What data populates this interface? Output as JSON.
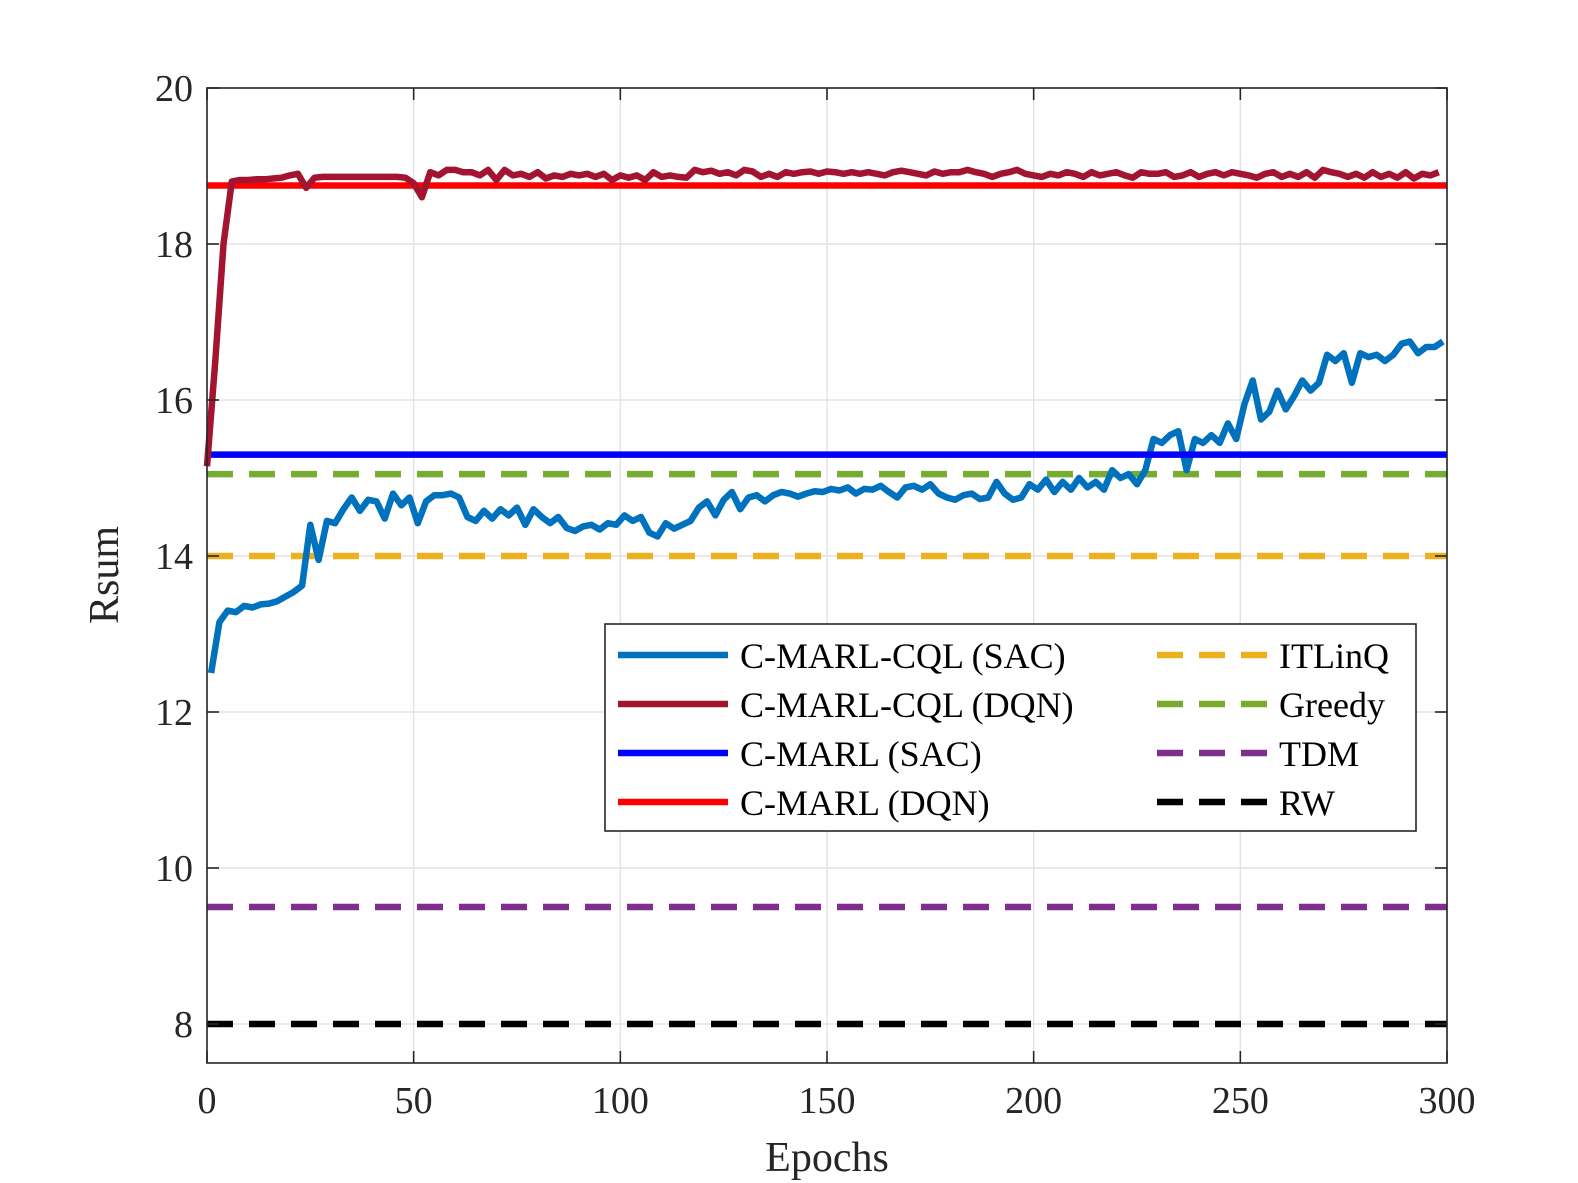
{
  "chart_data": {
    "type": "line",
    "xlabel": "Epochs",
    "ylabel": "Rsum",
    "xlim": [
      0,
      300
    ],
    "ylim": [
      7.5,
      20
    ],
    "xticks": [
      0,
      50,
      100,
      150,
      200,
      250,
      300
    ],
    "yticks": [
      8,
      10,
      12,
      14,
      16,
      18,
      20
    ],
    "xtick_labels": [
      "0",
      "50",
      "100",
      "150",
      "200",
      "250",
      "300"
    ],
    "ytick_labels": [
      "8",
      "10",
      "12",
      "14",
      "16",
      "18",
      "20"
    ],
    "grid": true,
    "legend_position": "center-right",
    "series": [
      {
        "name": "C-MARL-CQL (SAC)",
        "color": "#0072BD",
        "style": "solid",
        "x": [
          1,
          3,
          5,
          7,
          9,
          11,
          13,
          15,
          17,
          19,
          21,
          23,
          25,
          27,
          29,
          31,
          33,
          35,
          37,
          39,
          41,
          43,
          45,
          47,
          49,
          51,
          53,
          55,
          57,
          59,
          61,
          63,
          65,
          67,
          69,
          71,
          73,
          75,
          77,
          79,
          81,
          83,
          85,
          87,
          89,
          91,
          93,
          95,
          97,
          99,
          101,
          103,
          105,
          107,
          109,
          111,
          113,
          115,
          117,
          119,
          121,
          123,
          125,
          127,
          129,
          131,
          133,
          135,
          137,
          139,
          141,
          143,
          145,
          147,
          149,
          151,
          153,
          155,
          157,
          159,
          161,
          163,
          165,
          167,
          169,
          171,
          173,
          175,
          177,
          179,
          181,
          183,
          185,
          187,
          189,
          191,
          193,
          195,
          197,
          199,
          201,
          203,
          205,
          207,
          209,
          211,
          213,
          215,
          217,
          219,
          221,
          223,
          225,
          227,
          229,
          231,
          233,
          235,
          237,
          239,
          241,
          243,
          245,
          247,
          249,
          251,
          253,
          255,
          257,
          259,
          261,
          263,
          265,
          267,
          269,
          271,
          273,
          275,
          277,
          279,
          281,
          283,
          285,
          287,
          289,
          291,
          293,
          295,
          297,
          299
        ],
        "values": [
          12.5,
          13.15,
          13.3,
          13.28,
          13.36,
          13.34,
          13.38,
          13.39,
          13.42,
          13.48,
          13.54,
          13.62,
          14.4,
          13.95,
          14.45,
          14.42,
          14.6,
          14.75,
          14.58,
          14.72,
          14.7,
          14.48,
          14.8,
          14.65,
          14.75,
          14.42,
          14.7,
          14.78,
          14.78,
          14.8,
          14.75,
          14.5,
          14.45,
          14.58,
          14.48,
          14.6,
          14.52,
          14.62,
          14.4,
          14.6,
          14.5,
          14.42,
          14.5,
          14.36,
          14.32,
          14.38,
          14.4,
          14.34,
          14.42,
          14.4,
          14.52,
          14.45,
          14.5,
          14.3,
          14.25,
          14.42,
          14.35,
          14.4,
          14.45,
          14.62,
          14.7,
          14.52,
          14.72,
          14.82,
          14.6,
          14.75,
          14.78,
          14.7,
          14.78,
          14.82,
          14.8,
          14.76,
          14.8,
          14.83,
          14.82,
          14.86,
          14.84,
          14.88,
          14.8,
          14.86,
          14.85,
          14.9,
          14.82,
          14.75,
          14.88,
          14.9,
          14.85,
          14.92,
          14.8,
          14.75,
          14.72,
          14.78,
          14.8,
          14.73,
          14.75,
          14.95,
          14.8,
          14.72,
          14.75,
          14.92,
          14.85,
          14.98,
          14.82,
          14.95,
          14.85,
          15.0,
          14.88,
          14.95,
          14.85,
          15.1,
          15.0,
          15.05,
          14.92,
          15.1,
          15.5,
          15.45,
          15.55,
          15.6,
          15.1,
          15.5,
          15.45,
          15.55,
          15.45,
          15.7,
          15.5,
          15.95,
          16.25,
          15.75,
          15.85,
          16.12,
          15.88,
          16.05,
          16.25,
          16.12,
          16.22,
          16.58,
          16.5,
          16.6,
          16.22,
          16.6,
          16.55,
          16.58,
          16.5,
          16.58,
          16.72,
          16.75,
          16.6,
          16.68,
          16.68,
          16.75
        ]
      },
      {
        "name": "C-MARL-CQL (DQN)",
        "color": "#A2142F",
        "style": "solid",
        "x": [
          0,
          2,
          4,
          6,
          8,
          10,
          12,
          14,
          16,
          18,
          20,
          22,
          24,
          26,
          28,
          30,
          32,
          34,
          36,
          38,
          40,
          42,
          44,
          46,
          48,
          50,
          52,
          54,
          56,
          58,
          60,
          62,
          64,
          66,
          68,
          70,
          72,
          74,
          76,
          78,
          80,
          82,
          84,
          86,
          88,
          90,
          92,
          94,
          96,
          98,
          100,
          102,
          104,
          106,
          108,
          110,
          112,
          114,
          116,
          118,
          120,
          122,
          124,
          126,
          128,
          130,
          132,
          134,
          136,
          138,
          140,
          142,
          144,
          146,
          148,
          150,
          152,
          154,
          156,
          158,
          160,
          162,
          164,
          166,
          168,
          170,
          172,
          174,
          176,
          178,
          180,
          182,
          184,
          186,
          188,
          190,
          192,
          194,
          196,
          198,
          200,
          202,
          204,
          206,
          208,
          210,
          212,
          214,
          216,
          218,
          220,
          222,
          224,
          226,
          228,
          230,
          232,
          234,
          236,
          238,
          240,
          242,
          244,
          246,
          248,
          250,
          252,
          254,
          256,
          258,
          260,
          262,
          264,
          266,
          268,
          270,
          272,
          274,
          276,
          278,
          280,
          282,
          284,
          286,
          288,
          290,
          292,
          294,
          296,
          298
        ],
        "values": [
          15.15,
          16.5,
          18.0,
          18.8,
          18.82,
          18.82,
          18.83,
          18.83,
          18.84,
          18.85,
          18.88,
          18.9,
          18.72,
          18.85,
          18.86,
          18.86,
          18.86,
          18.86,
          18.86,
          18.86,
          18.86,
          18.86,
          18.86,
          18.86,
          18.85,
          18.78,
          18.6,
          18.92,
          18.88,
          18.95,
          18.95,
          18.92,
          18.92,
          18.88,
          18.95,
          18.82,
          18.95,
          18.88,
          18.9,
          18.86,
          18.92,
          18.84,
          18.88,
          18.86,
          18.9,
          18.88,
          18.9,
          18.86,
          18.9,
          18.82,
          18.88,
          18.85,
          18.88,
          18.82,
          18.92,
          18.86,
          18.88,
          18.86,
          18.85,
          18.95,
          18.92,
          18.94,
          18.9,
          18.92,
          18.88,
          18.95,
          18.93,
          18.86,
          18.9,
          18.86,
          18.92,
          18.9,
          18.92,
          18.93,
          18.9,
          18.93,
          18.92,
          18.9,
          18.92,
          18.9,
          18.92,
          18.9,
          18.88,
          18.92,
          18.94,
          18.92,
          18.9,
          18.88,
          18.93,
          18.9,
          18.92,
          18.92,
          18.95,
          18.92,
          18.9,
          18.86,
          18.9,
          18.92,
          18.95,
          18.9,
          18.88,
          18.86,
          18.9,
          18.88,
          18.92,
          18.9,
          18.86,
          18.92,
          18.88,
          18.9,
          18.92,
          18.88,
          18.85,
          18.92,
          18.9,
          18.9,
          18.92,
          18.86,
          18.88,
          18.92,
          18.86,
          18.9,
          18.92,
          18.88,
          18.92,
          18.9,
          18.88,
          18.85,
          18.9,
          18.92,
          18.86,
          18.9,
          18.86,
          18.92,
          18.85,
          18.95,
          18.92,
          18.9,
          18.86,
          18.9,
          18.85,
          18.92,
          18.86,
          18.9,
          18.85,
          18.92,
          18.84,
          18.9,
          18.88,
          18.92
        ]
      },
      {
        "name": "C-MARL (SAC)",
        "color": "#0000FF",
        "style": "solid",
        "x": [
          0,
          300
        ],
        "values": [
          15.3,
          15.3
        ]
      },
      {
        "name": "C-MARL (DQN)",
        "color": "#FF0000",
        "style": "solid",
        "x": [
          0,
          300
        ],
        "values": [
          18.75,
          18.75
        ]
      },
      {
        "name": "ITLinQ",
        "color": "#EDB120",
        "style": "dashed",
        "x": [
          0,
          300
        ],
        "values": [
          14.0,
          14.0
        ]
      },
      {
        "name": "Greedy",
        "color": "#77AC30",
        "style": "dashed",
        "x": [
          0,
          300
        ],
        "values": [
          15.05,
          15.05
        ]
      },
      {
        "name": "TDM",
        "color": "#7E2F8E",
        "style": "dashed",
        "x": [
          0,
          300
        ],
        "values": [
          9.5,
          9.5
        ]
      },
      {
        "name": "RW",
        "color": "#000000",
        "style": "dashed",
        "x": [
          0,
          300
        ],
        "values": [
          8.0,
          8.0
        ]
      }
    ]
  }
}
